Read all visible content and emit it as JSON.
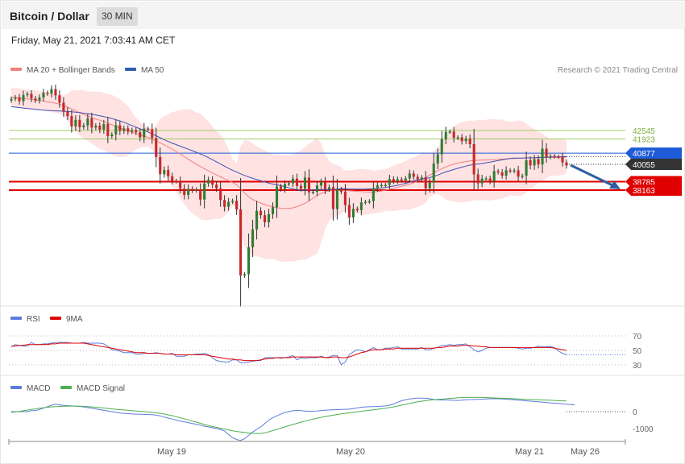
{
  "header": {
    "title": "Bitcoin / Dollar",
    "timeframe": "30 MIN",
    "datetime": "Friday, May 21, 2021 7:03:41 AM CET"
  },
  "colors": {
    "up": "#2e7d32",
    "down": "#c62828",
    "bb_fill": "#ffd8d8",
    "ma20": "#f08080",
    "ma50": "#3f51b5",
    "level_blue": "#1e5bd8",
    "level_red": "#e00000",
    "level_green": "#9ccc65",
    "rsi": "#5c7cdc",
    "rsi_ma": "#e00000",
    "macd": "#5c7cdc",
    "macd_signal": "#4caf50",
    "forecast_arrow": "#2f5fa0"
  },
  "legend": {
    "main": [
      {
        "label": "MA 20 + Bollinger Bands",
        "color": "#f08080"
      },
      {
        "label": "MA 50",
        "color": "#2e5fa8"
      }
    ],
    "credit": "Research © 2021 Trading Central",
    "rsi": [
      {
        "label": "RSI",
        "color": "#5c7cdc"
      },
      {
        "label": "9MA",
        "color": "#e00000"
      }
    ],
    "macd": [
      {
        "label": "MACD",
        "color": "#5c7cdc"
      },
      {
        "label": "MACD Signal",
        "color": "#4caf50"
      }
    ]
  },
  "chart_data": [
    {
      "type": "candlestick",
      "interval": "30 MIN",
      "x_labels": [
        "May 19",
        "May 20",
        "May 21",
        "May 26"
      ],
      "ylim": [
        26500,
        45500
      ],
      "levels": [
        {
          "value": 42545,
          "label": "42545",
          "style": "green-line"
        },
        {
          "value": 41923,
          "label": "41923",
          "style": "green-line"
        },
        {
          "value": 40877,
          "label": "40877",
          "style": "blue-line-tag"
        },
        {
          "value": 40055,
          "label": "40055",
          "style": "current-price-tag"
        },
        {
          "value": 38785,
          "label": "38785",
          "style": "red-line-tag"
        },
        {
          "value": 38163,
          "label": "38163",
          "style": "red-line-tag"
        }
      ],
      "candles_close": [
        44870,
        44980,
        44700,
        45150,
        45240,
        44900,
        44750,
        44970,
        45330,
        45250,
        45590,
        45130,
        44590,
        43960,
        43600,
        42850,
        43330,
        42790,
        42920,
        43430,
        42760,
        42900,
        42610,
        43020,
        42130,
        42250,
        42930,
        42510,
        42700,
        42460,
        42580,
        42410,
        42040,
        42690,
        42640,
        41990,
        40600,
        39330,
        39640,
        39180,
        38850,
        38800,
        38280,
        37810,
        38260,
        38130,
        38210,
        37470,
        38650,
        38910,
        38570,
        38290,
        37440,
        36940,
        37300,
        37380,
        36740,
        31880,
        31980,
        33960,
        35270,
        36640,
        36320,
        35800,
        36400,
        36910,
        38430,
        38250,
        38610,
        38660,
        39010,
        38470,
        38270,
        39080,
        38000,
        38040,
        38500,
        38770,
        38230,
        38380,
        36770,
        38210,
        38050,
        37070,
        36150,
        36790,
        36690,
        37250,
        37300,
        37350,
        38270,
        38520,
        38540,
        38550,
        38980,
        38800,
        38960,
        38870,
        39020,
        39380,
        39140,
        38960,
        39090,
        38290,
        38710,
        40120,
        40800,
        41900,
        42450,
        42470,
        42000,
        42040,
        41760,
        41950,
        41540,
        39320,
        38660,
        39010,
        39020,
        38810,
        39560,
        39470,
        39230,
        39620,
        39550,
        39620,
        39150,
        39220,
        40360,
        39980,
        40440,
        40050,
        41210,
        40580,
        40670,
        40620,
        40600,
        40200,
        39970
      ],
      "ma50": [
        44300,
        44260,
        44230,
        44200,
        44170,
        44140,
        44100,
        44070,
        44040,
        44020,
        44000,
        43990,
        43980,
        43960,
        43940,
        43920,
        43890,
        43860,
        43820,
        43780,
        43740,
        43690,
        43630,
        43570,
        43500,
        43420,
        43340,
        43250,
        43150,
        43030,
        42910,
        42790,
        42670,
        42550,
        42430,
        42300,
        42160,
        42010,
        41870,
        41740,
        41620,
        41500,
        41390,
        41280,
        41170,
        41060,
        40940,
        40820,
        40690,
        40550,
        40400,
        40240,
        40080,
        39920,
        39770,
        39620,
        39490,
        39360,
        39240,
        39130,
        39030,
        38940,
        38850,
        38760,
        38680,
        38610,
        38550,
        38490,
        38420,
        38330,
        38250,
        38190,
        38160,
        38150,
        38160,
        38180,
        38200,
        38210,
        38210,
        38200,
        38210,
        38240,
        38260,
        38250,
        38240,
        38240,
        38240,
        38240,
        38240,
        38250,
        38270,
        38300,
        38330,
        38360,
        38410,
        38460,
        38520,
        38590,
        38660,
        38740,
        38830,
        38910,
        38960,
        39010,
        39080,
        39170,
        39270,
        39390,
        39500,
        39590,
        39680,
        39770,
        39850,
        39930,
        40000,
        40050,
        40080,
        40120,
        40170,
        40220,
        40280,
        40330,
        40390,
        40440,
        40490,
        40520,
        40520,
        40520,
        40530,
        40530,
        40540,
        40560,
        40570,
        40580,
        40590,
        40600,
        40610,
        40620,
        40620
      ],
      "ma20": [
        45000,
        44970,
        44940,
        44900,
        44870,
        44830,
        44790,
        44750,
        44710,
        44660,
        44610,
        44550,
        44480,
        44380,
        44260,
        44130,
        43990,
        43850,
        43720,
        43600,
        43490,
        43390,
        43300,
        43200,
        43090,
        42960,
        42840,
        42720,
        42610,
        42510,
        42420,
        42320,
        42230,
        42130,
        42030,
        41910,
        41780,
        41640,
        41490,
        41340,
        41170,
        41000,
        40810,
        40620,
        40430,
        40250,
        40070,
        39900,
        39740,
        39580,
        39430,
        39280,
        39140,
        39000,
        38860,
        38730,
        38560,
        38280,
        37950,
        37680,
        37470,
        37330,
        37210,
        37100,
        37010,
        36940,
        36880,
        36830,
        36810,
        36820,
        36860,
        36950,
        37060,
        37190,
        37370,
        37570,
        37760,
        37920,
        38040,
        38110,
        38130,
        38130,
        38140,
        38130,
        38120,
        38100,
        38070,
        38050,
        38030,
        38020,
        38030,
        38060,
        38100,
        38160,
        38220,
        38290,
        38370,
        38450,
        38520,
        38600,
        38700,
        38830,
        38970,
        39110,
        39260,
        39420,
        39580,
        39740,
        39860,
        39980,
        40080,
        40150,
        40210,
        40260,
        40310,
        40340,
        40360,
        40370,
        40380,
        40390,
        40400,
        40420,
        40440,
        40460,
        40480,
        40490,
        40510,
        40520,
        40530,
        40540,
        40550,
        40560,
        40560,
        40570,
        40570,
        40570,
        40580,
        40580,
        40590
      ]
    },
    {
      "type": "line",
      "title": "RSI",
      "yticks": [
        70,
        50,
        30
      ],
      "ylim": [
        25,
        75
      ],
      "series": [
        {
          "name": "RSI",
          "values": [
            55,
            58,
            57,
            56,
            56,
            61,
            58,
            58,
            59,
            59,
            60,
            61,
            61,
            61,
            61,
            60,
            60,
            60,
            61,
            60,
            60,
            60,
            60,
            59,
            56,
            51,
            50,
            49,
            47,
            47,
            47,
            45,
            45,
            46,
            46,
            46,
            47,
            46,
            45,
            45,
            46,
            42,
            42,
            42,
            44,
            44,
            45,
            45,
            46,
            44,
            40,
            36,
            35,
            34,
            34,
            37,
            37,
            33,
            33,
            34,
            35,
            36,
            36,
            40,
            40,
            40,
            40,
            39,
            40,
            41,
            43,
            37,
            40,
            39,
            40,
            40,
            40,
            42,
            40,
            41,
            43,
            43,
            30,
            34,
            44,
            48,
            51,
            50,
            48,
            51,
            54,
            51,
            51,
            53,
            53,
            54,
            55,
            52,
            52,
            52,
            52,
            52,
            54,
            51,
            51,
            53,
            54,
            57,
            57,
            58,
            57,
            58,
            58,
            59,
            55,
            51,
            48,
            50,
            53,
            54,
            54,
            54,
            54,
            54,
            54,
            54,
            53,
            52,
            53,
            53,
            54,
            56,
            55,
            55,
            55,
            54,
            49,
            46,
            44
          ]
        },
        {
          "name": "9MA",
          "values": [
            56,
            56,
            57,
            57,
            58,
            58,
            58,
            58,
            58,
            58,
            59,
            59,
            60,
            60,
            60,
            60,
            60,
            60,
            60,
            59,
            58,
            57,
            56,
            55,
            54,
            53,
            52,
            51,
            50,
            49,
            48,
            47,
            47,
            47,
            46,
            46,
            46,
            46,
            45,
            45,
            45,
            44,
            44,
            44,
            44,
            44,
            44,
            44,
            44,
            43,
            42,
            41,
            40,
            39,
            38,
            38,
            37,
            37,
            36,
            36,
            36,
            36,
            37,
            38,
            39,
            39,
            40,
            40,
            40,
            40,
            41,
            41,
            41,
            41,
            41,
            41,
            41,
            41,
            40,
            40,
            41,
            41,
            40,
            40,
            41,
            43,
            45,
            47,
            48,
            50,
            51,
            51,
            51,
            52,
            52,
            52,
            53,
            53,
            53,
            53,
            53,
            53,
            53,
            53,
            53,
            53,
            54,
            54,
            55,
            56,
            56,
            56,
            57,
            57,
            57,
            56,
            56,
            55,
            55,
            54,
            54,
            54,
            54,
            54,
            54,
            54,
            54,
            54,
            54,
            54,
            54,
            54,
            54,
            54,
            54,
            53,
            52,
            51,
            50
          ]
        }
      ]
    },
    {
      "type": "line",
      "title": "MACD",
      "yticks": [
        0,
        -1000
      ],
      "ylim": [
        -1800,
        1100
      ],
      "series": [
        {
          "name": "MACD",
          "values": [
            0,
            0,
            0,
            0,
            0,
            60,
            60,
            130,
            210,
            290,
            380,
            450,
            400,
            370,
            350,
            340,
            320,
            310,
            280,
            240,
            200,
            160,
            120,
            80,
            40,
            0,
            -40,
            -80,
            -100,
            -120,
            -140,
            -150,
            -150,
            -160,
            -170,
            -180,
            -200,
            -250,
            -320,
            -380,
            -440,
            -500,
            -560,
            -600,
            -650,
            -700,
            -750,
            -800,
            -860,
            -900,
            -950,
            -1000,
            -1050,
            -1150,
            -1350,
            -1550,
            -1650,
            -1700,
            -1600,
            -1400,
            -1200,
            -1050,
            -900,
            -700,
            -500,
            -350,
            -250,
            -150,
            -50,
            0,
            50,
            80,
            60,
            40,
            20,
            30,
            40,
            60,
            80,
            100,
            110,
            120,
            130,
            140,
            150,
            180,
            220,
            260,
            280,
            290,
            300,
            310,
            320,
            340,
            380,
            450,
            550,
            650,
            700,
            750,
            780,
            800,
            800,
            790,
            760,
            720,
            690,
            690,
            690,
            680,
            670,
            660,
            680,
            700,
            710,
            720,
            730,
            740,
            750,
            760,
            760,
            760,
            750,
            740,
            720,
            700,
            680,
            660,
            640,
            620,
            600,
            580,
            560,
            540,
            520,
            500,
            480,
            460,
            440,
            420,
            400
          ]
        },
        {
          "name": "MACD Signal",
          "values": [
            -50,
            -20,
            10,
            50,
            90,
            130,
            160,
            200,
            230,
            260,
            280,
            300,
            310,
            320,
            320,
            330,
            330,
            320,
            310,
            300,
            280,
            260,
            240,
            220,
            190,
            160,
            140,
            120,
            100,
            80,
            60,
            40,
            20,
            0,
            -20,
            -40,
            -70,
            -100,
            -140,
            -190,
            -240,
            -300,
            -360,
            -420,
            -490,
            -560,
            -620,
            -690,
            -760,
            -820,
            -880,
            -930,
            -980,
            -1030,
            -1080,
            -1130,
            -1170,
            -1200,
            -1230,
            -1260,
            -1280,
            -1290,
            -1290,
            -1250,
            -1190,
            -1120,
            -1050,
            -980,
            -900,
            -830,
            -760,
            -690,
            -620,
            -560,
            -500,
            -440,
            -390,
            -340,
            -290,
            -250,
            -210,
            -170,
            -130,
            -100,
            -70,
            -40,
            -10,
            20,
            50,
            80,
            110,
            140,
            170,
            200,
            240,
            280,
            330,
            380,
            430,
            480,
            530,
            580,
            620,
            650,
            680,
            700,
            720,
            740,
            760,
            780,
            800,
            820,
            830,
            840,
            840,
            840,
            840,
            840,
            830,
            820,
            810,
            800,
            790,
            780,
            770,
            760,
            750,
            740,
            730,
            720,
            710,
            700,
            690,
            680,
            670,
            660,
            650,
            640,
            630
          ]
        }
      ]
    }
  ]
}
